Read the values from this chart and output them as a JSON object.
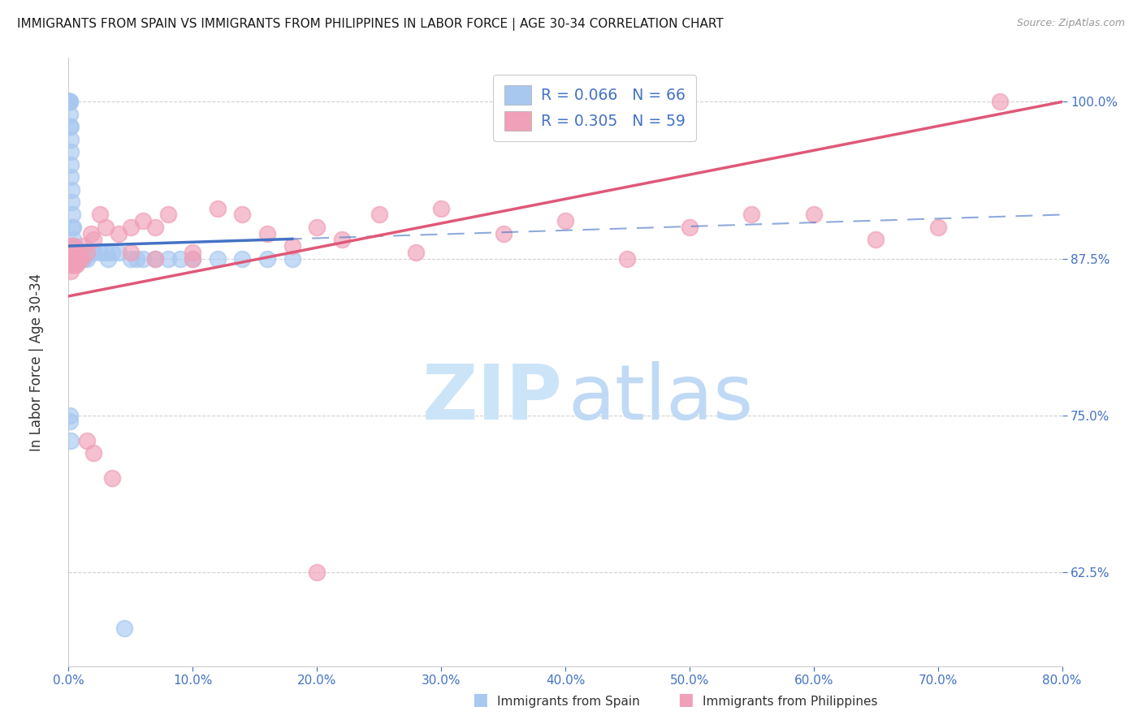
{
  "title": "IMMIGRANTS FROM SPAIN VS IMMIGRANTS FROM PHILIPPINES IN LABOR FORCE | AGE 30-34 CORRELATION CHART",
  "source": "Source: ZipAtlas.com",
  "ylabel": "In Labor Force | Age 30-34",
  "x_tick_labels": [
    "0.0%",
    "10.0%",
    "20.0%",
    "30.0%",
    "40.0%",
    "50.0%",
    "60.0%",
    "70.0%",
    "80.0%"
  ],
  "x_tick_values": [
    0.0,
    10.0,
    20.0,
    30.0,
    40.0,
    50.0,
    60.0,
    70.0,
    80.0
  ],
  "y_tick_labels": [
    "62.5%",
    "75.0%",
    "87.5%",
    "100.0%"
  ],
  "y_tick_values": [
    62.5,
    75.0,
    87.5,
    100.0
  ],
  "xlim": [
    0.0,
    80.0
  ],
  "ylim": [
    55.0,
    103.5
  ],
  "legend_spain_r": "R = 0.066",
  "legend_spain_n": "N = 66",
  "legend_phil_r": "R = 0.305",
  "legend_phil_n": "N = 59",
  "color_spain": "#a8c8f0",
  "color_phil": "#f0a0b8",
  "color_spain_line": "#4472c4",
  "color_phil_line": "#e05878",
  "color_axis_labels": "#4472c4",
  "watermark_zip_color": "#cce4f8",
  "watermark_atlas_color": "#c0daf5",
  "spain_x": [
    0.0,
    0.0,
    0.0,
    0.0,
    0.05,
    0.05,
    0.05,
    0.05,
    0.05,
    0.1,
    0.1,
    0.1,
    0.1,
    0.15,
    0.15,
    0.15,
    0.2,
    0.2,
    0.25,
    0.25,
    0.3,
    0.3,
    0.35,
    0.4,
    0.4,
    0.5,
    0.5,
    0.6,
    0.7,
    0.8,
    1.0,
    1.2,
    1.5,
    1.8,
    2.0,
    2.5,
    3.0,
    3.5,
    4.0,
    5.0,
    6.0,
    7.0,
    8.0,
    9.0,
    10.0,
    12.0,
    14.0,
    16.0,
    18.0,
    5.5,
    1.2,
    0.3,
    0.35,
    0.4,
    0.45,
    0.5,
    0.05,
    0.08,
    0.12,
    0.2,
    0.6,
    0.7,
    0.9,
    1.1,
    3.2,
    4.5
  ],
  "spain_y": [
    100.0,
    100.0,
    100.0,
    100.0,
    100.0,
    100.0,
    100.0,
    100.0,
    100.0,
    100.0,
    100.0,
    99.0,
    98.0,
    98.0,
    97.0,
    96.0,
    95.0,
    94.0,
    93.0,
    92.0,
    91.0,
    90.0,
    90.0,
    89.0,
    88.5,
    88.5,
    88.0,
    88.0,
    88.0,
    87.5,
    87.5,
    88.0,
    87.5,
    88.0,
    88.0,
    88.0,
    88.0,
    88.0,
    88.0,
    87.5,
    87.5,
    87.5,
    87.5,
    87.5,
    87.5,
    87.5,
    87.5,
    87.5,
    87.5,
    87.5,
    87.5,
    87.5,
    88.0,
    87.0,
    87.5,
    87.0,
    87.5,
    75.0,
    74.5,
    73.0,
    87.5,
    87.5,
    87.5,
    87.5,
    87.5,
    58.0
  ],
  "spain_trend_x": [
    0.0,
    80.0
  ],
  "spain_trend_y": [
    88.5,
    91.0
  ],
  "phil_x": [
    0.05,
    0.05,
    0.1,
    0.1,
    0.15,
    0.15,
    0.2,
    0.2,
    0.25,
    0.3,
    0.3,
    0.35,
    0.4,
    0.4,
    0.5,
    0.5,
    0.6,
    0.7,
    0.8,
    1.0,
    1.2,
    1.5,
    1.8,
    2.0,
    2.5,
    3.0,
    4.0,
    5.0,
    6.0,
    7.0,
    8.0,
    10.0,
    12.0,
    14.0,
    16.0,
    18.0,
    20.0,
    22.0,
    25.0,
    28.0,
    30.0,
    35.0,
    40.0,
    45.0,
    50.0,
    55.0,
    60.0,
    65.0,
    70.0,
    75.0,
    0.6,
    0.8,
    1.5,
    2.0,
    3.5,
    5.0,
    7.0,
    10.0,
    20.0
  ],
  "phil_y": [
    88.0,
    87.5,
    88.0,
    87.0,
    87.5,
    88.5,
    87.5,
    86.5,
    88.0,
    87.5,
    87.0,
    88.5,
    87.0,
    88.0,
    87.5,
    87.0,
    88.0,
    87.5,
    88.0,
    87.5,
    88.5,
    88.0,
    89.5,
    89.0,
    91.0,
    90.0,
    89.5,
    90.0,
    90.5,
    90.0,
    91.0,
    88.0,
    91.5,
    91.0,
    89.5,
    88.5,
    90.0,
    89.0,
    91.0,
    88.0,
    91.5,
    89.5,
    90.5,
    87.5,
    90.0,
    91.0,
    91.0,
    89.0,
    90.0,
    100.0,
    87.0,
    87.5,
    73.0,
    72.0,
    70.0,
    88.0,
    87.5,
    87.5,
    62.5
  ],
  "phil_trend_x": [
    0.0,
    80.0
  ],
  "phil_trend_y": [
    84.5,
    100.0
  ]
}
